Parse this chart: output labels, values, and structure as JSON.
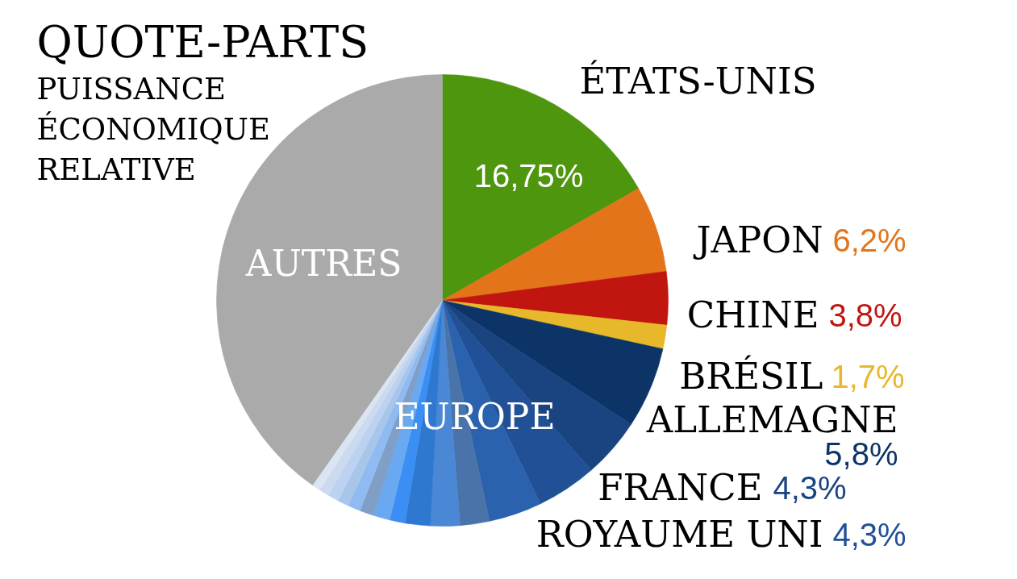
{
  "chart_data": {
    "type": "pie",
    "title": "QUOTE-PARTS",
    "subtitle": "PUISSANCE ÉCONOMIQUE RELATIVE",
    "categories": [
      "ÉTATS-UNIS",
      "JAPON",
      "CHINE",
      "BRÉSIL",
      "ALLEMAGNE",
      "FRANCE",
      "ROYAUME UNI",
      null,
      null,
      null,
      null,
      null,
      null,
      null,
      null,
      null,
      null,
      null,
      null,
      "AUTRES"
    ],
    "values": [
      16.75,
      6.2,
      3.8,
      1.7,
      5.8,
      4.3,
      4.3,
      3.8,
      2.1,
      2.1,
      1.8,
      1.1,
      1.2,
      1.0,
      0.9,
      0.8,
      0.8,
      0.7,
      0.6,
      40.25
    ],
    "colors": [
      "#4f960f",
      "#e3741a",
      "#c0160f",
      "#e6b82a",
      "#0c3467",
      "#19447f",
      "#215096",
      "#2a62ae",
      "#4a73a9",
      "#4a88d6",
      "#2f78d0",
      "#3a8ef4",
      "#6aa9f1",
      "#7f9fc6",
      "#90bbf2",
      "#a8c5ea",
      "#bcd2f0",
      "#cbdaee",
      "#dae4f2",
      "#aaaaaa"
    ],
    "value_labels": [
      "16,75%",
      "6,2%",
      "3,8%",
      "1,7%",
      "5,8%",
      "4,3%",
      "4,3%",
      null,
      null,
      null,
      null,
      null,
      null,
      null,
      null,
      null,
      null,
      null,
      null,
      null
    ],
    "annotations": [
      "EUROPE"
    ]
  }
}
